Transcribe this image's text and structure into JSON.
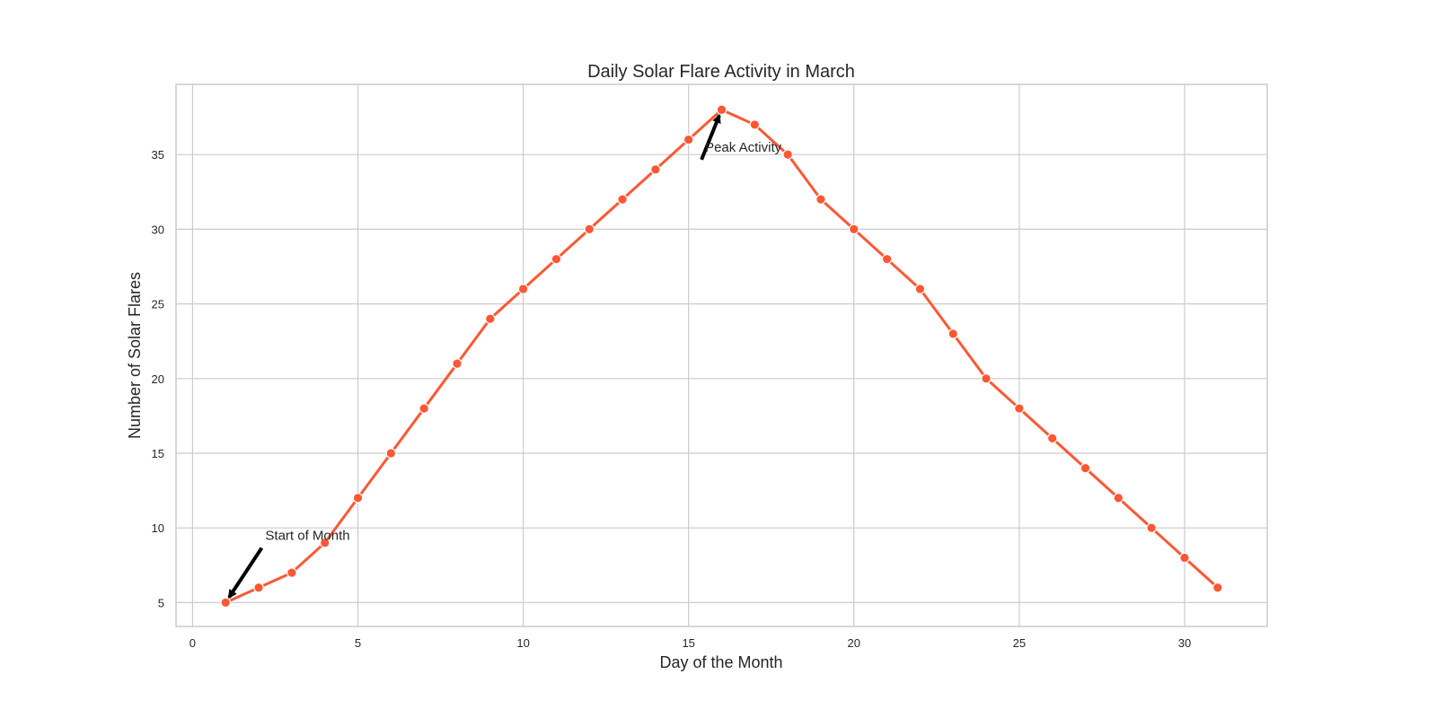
{
  "chart_data": {
    "type": "line",
    "title": "Daily Solar Flare Activity in March",
    "xlabel": "Day of the Month",
    "ylabel": "Number of Solar Flares",
    "x": [
      1,
      2,
      3,
      4,
      5,
      6,
      7,
      8,
      9,
      10,
      11,
      12,
      13,
      14,
      15,
      16,
      17,
      18,
      19,
      20,
      21,
      22,
      23,
      24,
      25,
      26,
      27,
      28,
      29,
      30,
      31
    ],
    "series": [
      {
        "values": [
          5,
          6,
          7,
          9,
          12,
          15,
          18,
          21,
          24,
          26,
          28,
          30,
          32,
          34,
          36,
          38,
          37,
          35,
          32,
          30,
          28,
          26,
          23,
          20,
          18,
          16,
          14,
          12,
          10,
          8,
          6
        ],
        "color": "#ff5733"
      }
    ],
    "xlim": [
      -0.5,
      32.5
    ],
    "ylim": [
      3.4,
      39.7
    ],
    "xticks": [
      0,
      5,
      10,
      15,
      20,
      25,
      30
    ],
    "yticks": [
      5,
      10,
      15,
      20,
      25,
      30,
      35
    ],
    "grid": true,
    "annotations": [
      {
        "text": "Start of Month",
        "x": 1,
        "y": 5,
        "text_x": 2.2,
        "text_y": 9.5
      },
      {
        "text": "Peak Activity",
        "x": 16,
        "y": 38,
        "text_x": 15.5,
        "text_y": 35.5
      }
    ]
  }
}
